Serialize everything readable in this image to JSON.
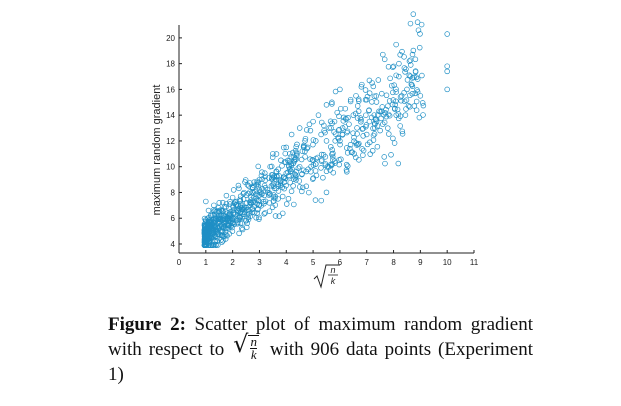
{
  "chart_data": {
    "type": "scatter",
    "title": "",
    "ylabel": "maximum random gradient",
    "xlabel": "√(n/k)",
    "xlim": [
      0,
      11
    ],
    "ylim": [
      3.3,
      21
    ],
    "xticks": [
      0,
      1,
      2,
      3,
      4,
      5,
      6,
      7,
      8,
      9,
      10,
      11
    ],
    "yticks": [
      4,
      6,
      8,
      10,
      12,
      14,
      16,
      18,
      20
    ],
    "marker": "hollow-circle",
    "grid": false,
    "legend": "none",
    "point_count": 906,
    "series_color": "#1f8fc5",
    "series": [
      {
        "x": [
          1.0,
          1.0,
          1.0,
          1.0,
          1.1,
          1.1,
          1.1,
          1.2,
          1.2,
          1.3,
          1.3,
          1.4,
          1.4,
          1.5,
          1.5,
          1.6,
          1.7,
          1.7,
          1.8,
          1.9,
          2.0,
          2.0,
          2.1,
          2.2,
          2.3,
          2.4,
          2.5,
          2.6,
          2.7,
          2.8,
          2.9,
          3.0,
          3.0,
          3.1,
          3.2,
          3.3,
          3.4,
          3.5,
          3.5,
          3.6,
          3.7,
          3.8,
          3.9,
          4.0,
          4.0,
          4.1,
          4.2,
          4.3,
          4.4,
          4.5,
          4.5,
          4.6,
          4.7,
          4.8,
          4.9,
          5.0,
          5.0,
          5.1,
          5.2,
          5.3,
          5.4,
          5.5,
          5.5,
          5.6,
          5.7,
          5.8,
          5.9,
          6.0,
          6.0,
          6.1,
          6.2,
          6.3,
          6.4,
          6.5,
          6.6,
          6.7,
          6.8,
          7.0,
          7.0,
          7.1,
          7.1,
          7.2,
          7.3,
          7.5,
          7.6,
          8.1,
          8.1,
          8.2,
          8.3,
          8.5,
          8.9,
          8.9,
          9.0,
          10.0,
          10.0,
          10.0,
          10.0
        ],
        "y": [
          4.0,
          4.6,
          5.2,
          7.3,
          4.2,
          5.6,
          6.6,
          4.5,
          6.2,
          4.9,
          7.0,
          5.0,
          6.5,
          5.3,
          7.2,
          5.5,
          5.7,
          6.9,
          6.0,
          7.1,
          5.6,
          7.6,
          6.3,
          7.0,
          6.5,
          7.9,
          6.8,
          8.5,
          7.2,
          8.8,
          7.4,
          8.0,
          9.0,
          8.3,
          9.5,
          8.2,
          10.0,
          8.6,
          11.0,
          9.0,
          9.8,
          10.5,
          9.2,
          9.5,
          11.5,
          10.0,
          12.5,
          10.4,
          11.0,
          10.0,
          13.0,
          11.2,
          12.0,
          11.5,
          12.8,
          10.5,
          13.5,
          12.0,
          14.0,
          12.5,
          13.2,
          12.0,
          14.8,
          13.0,
          15.0,
          13.5,
          14.2,
          12.0,
          16.0,
          13.0,
          14.5,
          13.8,
          15.2,
          14.0,
          15.5,
          14.3,
          16.2,
          12.5,
          15.2,
          16.7,
          13.5,
          16.5,
          13.0,
          12.8,
          13.3,
          14.0,
          15.8,
          18.0,
          15.5,
          16.0,
          15.8,
          16.8,
          15.5,
          17.4,
          17.8,
          20.3,
          16.0
        ]
      }
    ]
  },
  "caption": {
    "label": "Figure 2:",
    "text_before": "Scatter plot of maximum random gradient with respect to",
    "math_num": "n",
    "math_den": "k",
    "text_after": "with 906 data points (Experiment 1)"
  }
}
